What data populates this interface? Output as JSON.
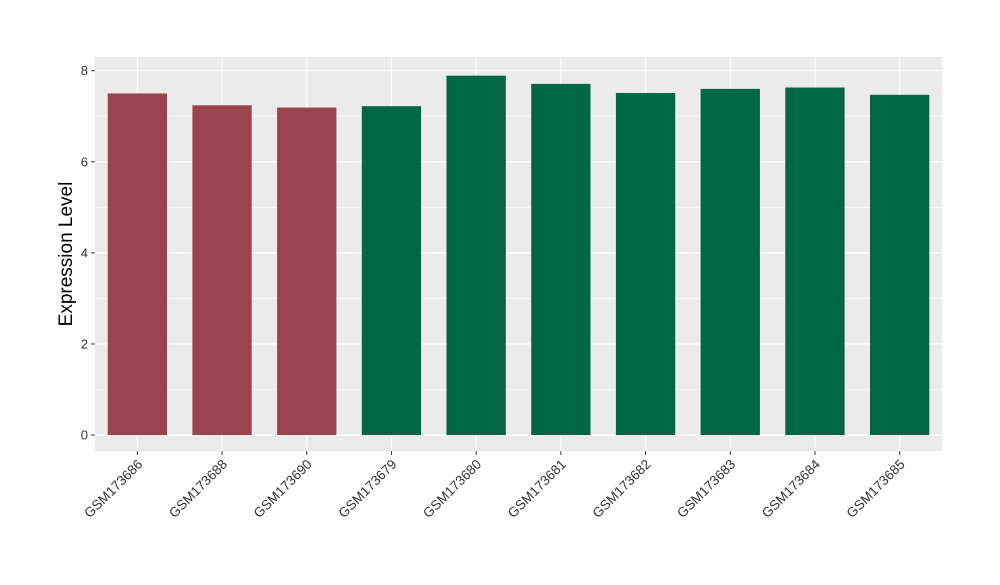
{
  "chart_data": {
    "type": "bar",
    "title": "",
    "xlabel": "",
    "ylabel": "Expression Level",
    "ylim": [
      -0.35,
      8.3
    ],
    "yticks": [
      0,
      2,
      4,
      6,
      8
    ],
    "grid": true,
    "categories": [
      "GSM173686",
      "GSM173688",
      "GSM173690",
      "GSM173679",
      "GSM173680",
      "GSM173681",
      "GSM173682",
      "GSM173683",
      "GSM173684",
      "GSM173685"
    ],
    "values": [
      7.5,
      7.24,
      7.19,
      7.22,
      7.89,
      7.71,
      7.51,
      7.6,
      7.63,
      7.47
    ],
    "bar_colors": [
      "#9a4450",
      "#9a4450",
      "#9a4450",
      "#006644",
      "#006644",
      "#006644",
      "#006644",
      "#006644",
      "#006644",
      "#006644"
    ],
    "panel_background": "#ebebeb",
    "grid_color": "#ffffff"
  }
}
